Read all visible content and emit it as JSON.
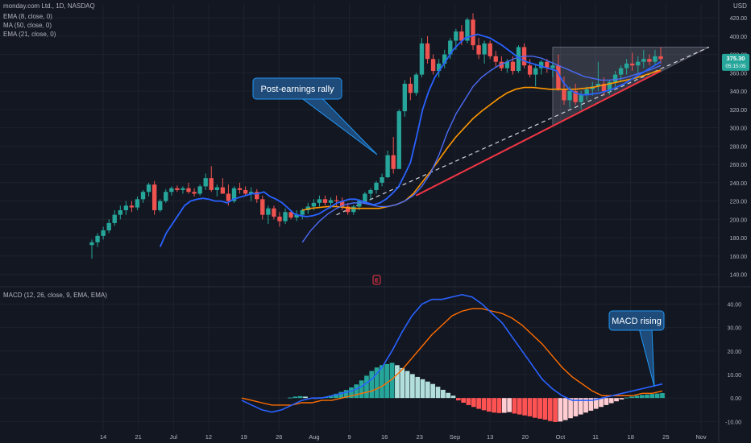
{
  "header": {
    "symbol": "monday.com Ltd., 1D, NASDAQ",
    "indicators": [
      "EMA (8, close, 0)",
      "MA (50, close, 0)",
      "EMA (21, close, 0)"
    ],
    "currency": "USD"
  },
  "macd_header": "MACD (12, 26, close, 9, EMA, EMA)",
  "price_tag": {
    "value": "375.30",
    "countdown": "05:15:05"
  },
  "annotations": {
    "rally": "Post-earnings rally",
    "macd": "MACD rising"
  },
  "colors": {
    "bg": "#131722",
    "up": "#26a69a",
    "down": "#ef5350",
    "ema8": "#2962ff",
    "ma50": "#ff9800",
    "ema21": "#4a6cf7",
    "macd": "#2962ff",
    "signal": "#ff6d00",
    "hist_up_strong": "#26a69a",
    "hist_up_weak": "#b2dfdb",
    "hist_down_strong": "#ff5252",
    "hist_down_weak": "#ffcdd2",
    "callout_bg": "#1e4b7a",
    "callout_border": "#2196f3"
  },
  "chart_data": [
    {
      "type": "candlestick",
      "title": "monday.com Ltd., 1D, NASDAQ",
      "ylabel": "USD",
      "ylim": [
        130,
        435
      ],
      "y_ticks": [
        140,
        160,
        180,
        200,
        220,
        240,
        260,
        280,
        300,
        320,
        340,
        360,
        380,
        400,
        420
      ],
      "x_ticks": [
        "14",
        "21",
        "Jul",
        "12",
        "19",
        "26",
        "Aug",
        "9",
        "16",
        "23",
        "Sep",
        "13",
        "20",
        "Oct",
        "11",
        "18",
        "25",
        "Nov"
      ],
      "candles": [
        [
          172,
          178,
          157,
          175
        ],
        [
          175,
          185,
          170,
          182
        ],
        [
          182,
          192,
          178,
          188
        ],
        [
          188,
          200,
          185,
          196
        ],
        [
          196,
          210,
          193,
          205
        ],
        [
          205,
          215,
          200,
          210
        ],
        [
          210,
          220,
          205,
          215
        ],
        [
          215,
          220,
          208,
          213
        ],
        [
          213,
          225,
          210,
          222
        ],
        [
          222,
          232,
          218,
          230
        ],
        [
          230,
          240,
          225,
          238
        ],
        [
          238,
          242,
          205,
          210
        ],
        [
          210,
          222,
          208,
          220
        ],
        [
          220,
          233,
          218,
          230
        ],
        [
          230,
          236,
          226,
          234
        ],
        [
          234,
          237,
          230,
          232
        ],
        [
          232,
          236,
          228,
          234
        ],
        [
          234,
          240,
          228,
          230
        ],
        [
          230,
          234,
          225,
          228
        ],
        [
          228,
          238,
          226,
          236
        ],
        [
          236,
          250,
          232,
          245
        ],
        [
          245,
          258,
          230,
          232
        ],
        [
          232,
          238,
          225,
          235
        ],
        [
          235,
          245,
          228,
          228
        ],
        [
          228,
          238,
          215,
          220
        ],
        [
          220,
          236,
          218,
          234
        ],
        [
          234,
          240,
          228,
          232
        ],
        [
          232,
          236,
          225,
          228
        ],
        [
          228,
          235,
          220,
          230
        ],
        [
          230,
          233,
          218,
          222
        ],
        [
          222,
          226,
          200,
          205
        ],
        [
          205,
          215,
          195,
          212
        ],
        [
          212,
          215,
          200,
          203
        ],
        [
          203,
          208,
          192,
          198
        ],
        [
          198,
          212,
          195,
          208
        ],
        [
          208,
          210,
          200,
          202
        ],
        [
          202,
          210,
          198,
          205
        ],
        [
          205,
          212,
          200,
          210
        ],
        [
          210,
          218,
          206,
          214
        ],
        [
          214,
          222,
          210,
          218
        ],
        [
          218,
          226,
          214,
          222
        ],
        [
          222,
          226,
          215,
          218
        ],
        [
          218,
          224,
          212,
          221
        ],
        [
          221,
          226,
          215,
          220
        ],
        [
          220,
          224,
          210,
          214
        ],
        [
          214,
          218,
          205,
          208
        ],
        [
          208,
          216,
          205,
          214
        ],
        [
          214,
          222,
          210,
          220
        ],
        [
          220,
          230,
          218,
          228
        ],
        [
          228,
          234,
          222,
          232
        ],
        [
          232,
          242,
          228,
          240
        ],
        [
          240,
          250,
          236,
          246
        ],
        [
          246,
          275,
          245,
          270
        ],
        [
          270,
          290,
          250,
          255
        ],
        [
          255,
          320,
          255,
          318
        ],
        [
          318,
          352,
          312,
          348
        ],
        [
          348,
          355,
          330,
          338
        ],
        [
          338,
          360,
          335,
          358
        ],
        [
          358,
          398,
          355,
          392
        ],
        [
          392,
          400,
          370,
          375
        ],
        [
          375,
          380,
          358,
          362
        ],
        [
          362,
          375,
          355,
          370
        ],
        [
          370,
          385,
          365,
          380
        ],
        [
          380,
          398,
          375,
          395
        ],
        [
          395,
          408,
          385,
          405
        ],
        [
          405,
          412,
          390,
          395
        ],
        [
          395,
          420,
          392,
          418
        ],
        [
          418,
          425,
          385,
          390
        ],
        [
          390,
          398,
          375,
          380
        ],
        [
          380,
          395,
          370,
          392
        ],
        [
          392,
          395,
          375,
          378
        ],
        [
          378,
          384,
          366,
          372
        ],
        [
          372,
          378,
          362,
          365
        ],
        [
          365,
          375,
          360,
          372
        ],
        [
          372,
          378,
          358,
          362
        ],
        [
          362,
          390,
          360,
          388
        ],
        [
          388,
          392,
          365,
          368
        ],
        [
          368,
          375,
          355,
          358
        ],
        [
          358,
          370,
          345,
          365
        ],
        [
          365,
          374,
          358,
          372
        ],
        [
          372,
          375,
          360,
          365
        ],
        [
          365,
          372,
          355,
          368
        ],
        [
          368,
          380,
          340,
          342
        ],
        [
          342,
          356,
          325,
          330
        ],
        [
          330,
          345,
          322,
          340
        ],
        [
          340,
          348,
          325,
          328
        ],
        [
          328,
          340,
          320,
          336
        ],
        [
          336,
          345,
          330,
          342
        ],
        [
          342,
          350,
          335,
          345
        ],
        [
          345,
          372,
          340,
          348
        ],
        [
          348,
          355,
          335,
          340
        ],
        [
          340,
          352,
          336,
          350
        ],
        [
          350,
          362,
          345,
          358
        ],
        [
          358,
          368,
          350,
          365
        ],
        [
          365,
          375,
          358,
          370
        ],
        [
          370,
          382,
          362,
          368
        ],
        [
          368,
          378,
          360,
          372
        ],
        [
          372,
          385,
          365,
          375
        ],
        [
          375,
          380,
          368,
          372
        ],
        [
          372,
          385,
          368,
          378
        ],
        [
          378,
          388,
          370,
          375
        ]
      ],
      "series": [
        {
          "name": "EMA (8, close, 0)",
          "values": [
            170,
            185,
            195,
            205,
            215,
            220,
            222,
            223,
            222,
            220,
            220,
            218,
            222,
            224,
            226,
            228,
            228,
            230,
            225,
            222,
            218,
            212,
            206,
            204,
            203,
            204,
            206,
            210,
            214,
            218,
            220,
            222,
            222,
            220,
            218,
            216,
            218,
            222,
            228,
            235,
            248,
            262,
            290,
            320,
            340,
            355,
            365,
            375,
            385,
            392,
            398,
            400,
            402,
            400,
            398,
            394,
            390,
            385,
            380,
            375,
            372,
            370,
            368,
            366,
            364,
            362,
            350,
            342,
            338,
            336,
            336,
            337,
            338,
            340,
            342,
            345,
            348,
            352,
            356,
            360,
            364,
            368,
            372
          ]
        },
        {
          "name": "MA (50, close, 0)",
          "values": [
            210,
            212,
            213,
            214,
            214,
            213,
            212,
            212,
            212,
            212,
            214,
            216,
            220,
            228,
            240,
            252,
            265,
            278,
            290,
            300,
            310,
            318,
            325,
            332,
            338,
            342,
            344,
            344,
            343,
            342,
            342,
            342,
            342,
            343,
            344,
            346,
            348,
            350,
            352,
            354,
            357,
            360,
            363
          ]
        },
        {
          "name": "EMA (21, close, 0)",
          "values": [
            175,
            188,
            198,
            206,
            212,
            216,
            218,
            218,
            216,
            214,
            214,
            216,
            220,
            226,
            236,
            250,
            270,
            295,
            315,
            330,
            345,
            355,
            362,
            368,
            372,
            376,
            378,
            378,
            376,
            372,
            368,
            364,
            360,
            356,
            354,
            352,
            352,
            353,
            355,
            358,
            361,
            364,
            368
          ]
        }
      ]
    },
    {
      "type": "macd",
      "title": "MACD (12, 26, close, 9, EMA, EMA)",
      "ylim": [
        -14,
        46
      ],
      "y_ticks": [
        -10,
        0,
        10,
        20,
        30,
        40
      ],
      "series": [
        {
          "name": "MACD",
          "values": [
            -1,
            -3,
            -5,
            -6,
            -5,
            -3,
            -1,
            0,
            0,
            1,
            2,
            3,
            5,
            8,
            13,
            20,
            28,
            35,
            40,
            42,
            42,
            43,
            44,
            43,
            40,
            36,
            32,
            26,
            20,
            14,
            8,
            4,
            1,
            -1,
            -1,
            -1,
            0,
            1,
            2,
            3,
            4,
            5,
            6
          ]
        },
        {
          "name": "Signal",
          "values": [
            0,
            -1,
            -2,
            -3,
            -3,
            -3,
            -2,
            -2,
            -1,
            -1,
            0,
            1,
            2,
            3,
            5,
            8,
            12,
            17,
            22,
            27,
            31,
            35,
            37,
            38,
            38,
            37,
            36,
            34,
            31,
            27,
            23,
            18,
            13,
            9,
            6,
            3,
            1,
            1,
            1,
            1,
            2,
            2,
            3
          ]
        }
      ],
      "histogram": [
        0.2,
        0.6,
        0.8,
        0.6,
        -0.2,
        -0.1,
        0.3,
        0.5,
        1.0,
        1.8,
        2.6,
        3.4,
        4.5,
        5.8,
        7.5,
        9.5,
        11.5,
        13.0,
        14.0,
        14.5,
        15.0,
        14.0,
        12.8,
        11.5,
        10.2,
        9.0,
        8.0,
        7.0,
        6.0,
        4.8,
        3.5,
        2.2,
        1.0,
        -1.0,
        -2.0,
        -3.0,
        -3.8,
        -4.6,
        -5.2,
        -5.8,
        -6.2,
        -6.4,
        -6.3,
        -6.0,
        -6.6,
        -7.0,
        -7.4,
        -7.8,
        -8.4,
        -8.8,
        -9.2,
        -9.8,
        -10.2,
        -10.0,
        -9.4,
        -8.6,
        -7.8,
        -7.0,
        -6.2,
        -5.4,
        -4.6,
        -3.8,
        -3.0,
        -2.2,
        -1.4,
        -0.6,
        0.2,
        0.6,
        1.0,
        1.3,
        1.5,
        1.7,
        1.9,
        2.1
      ]
    }
  ]
}
